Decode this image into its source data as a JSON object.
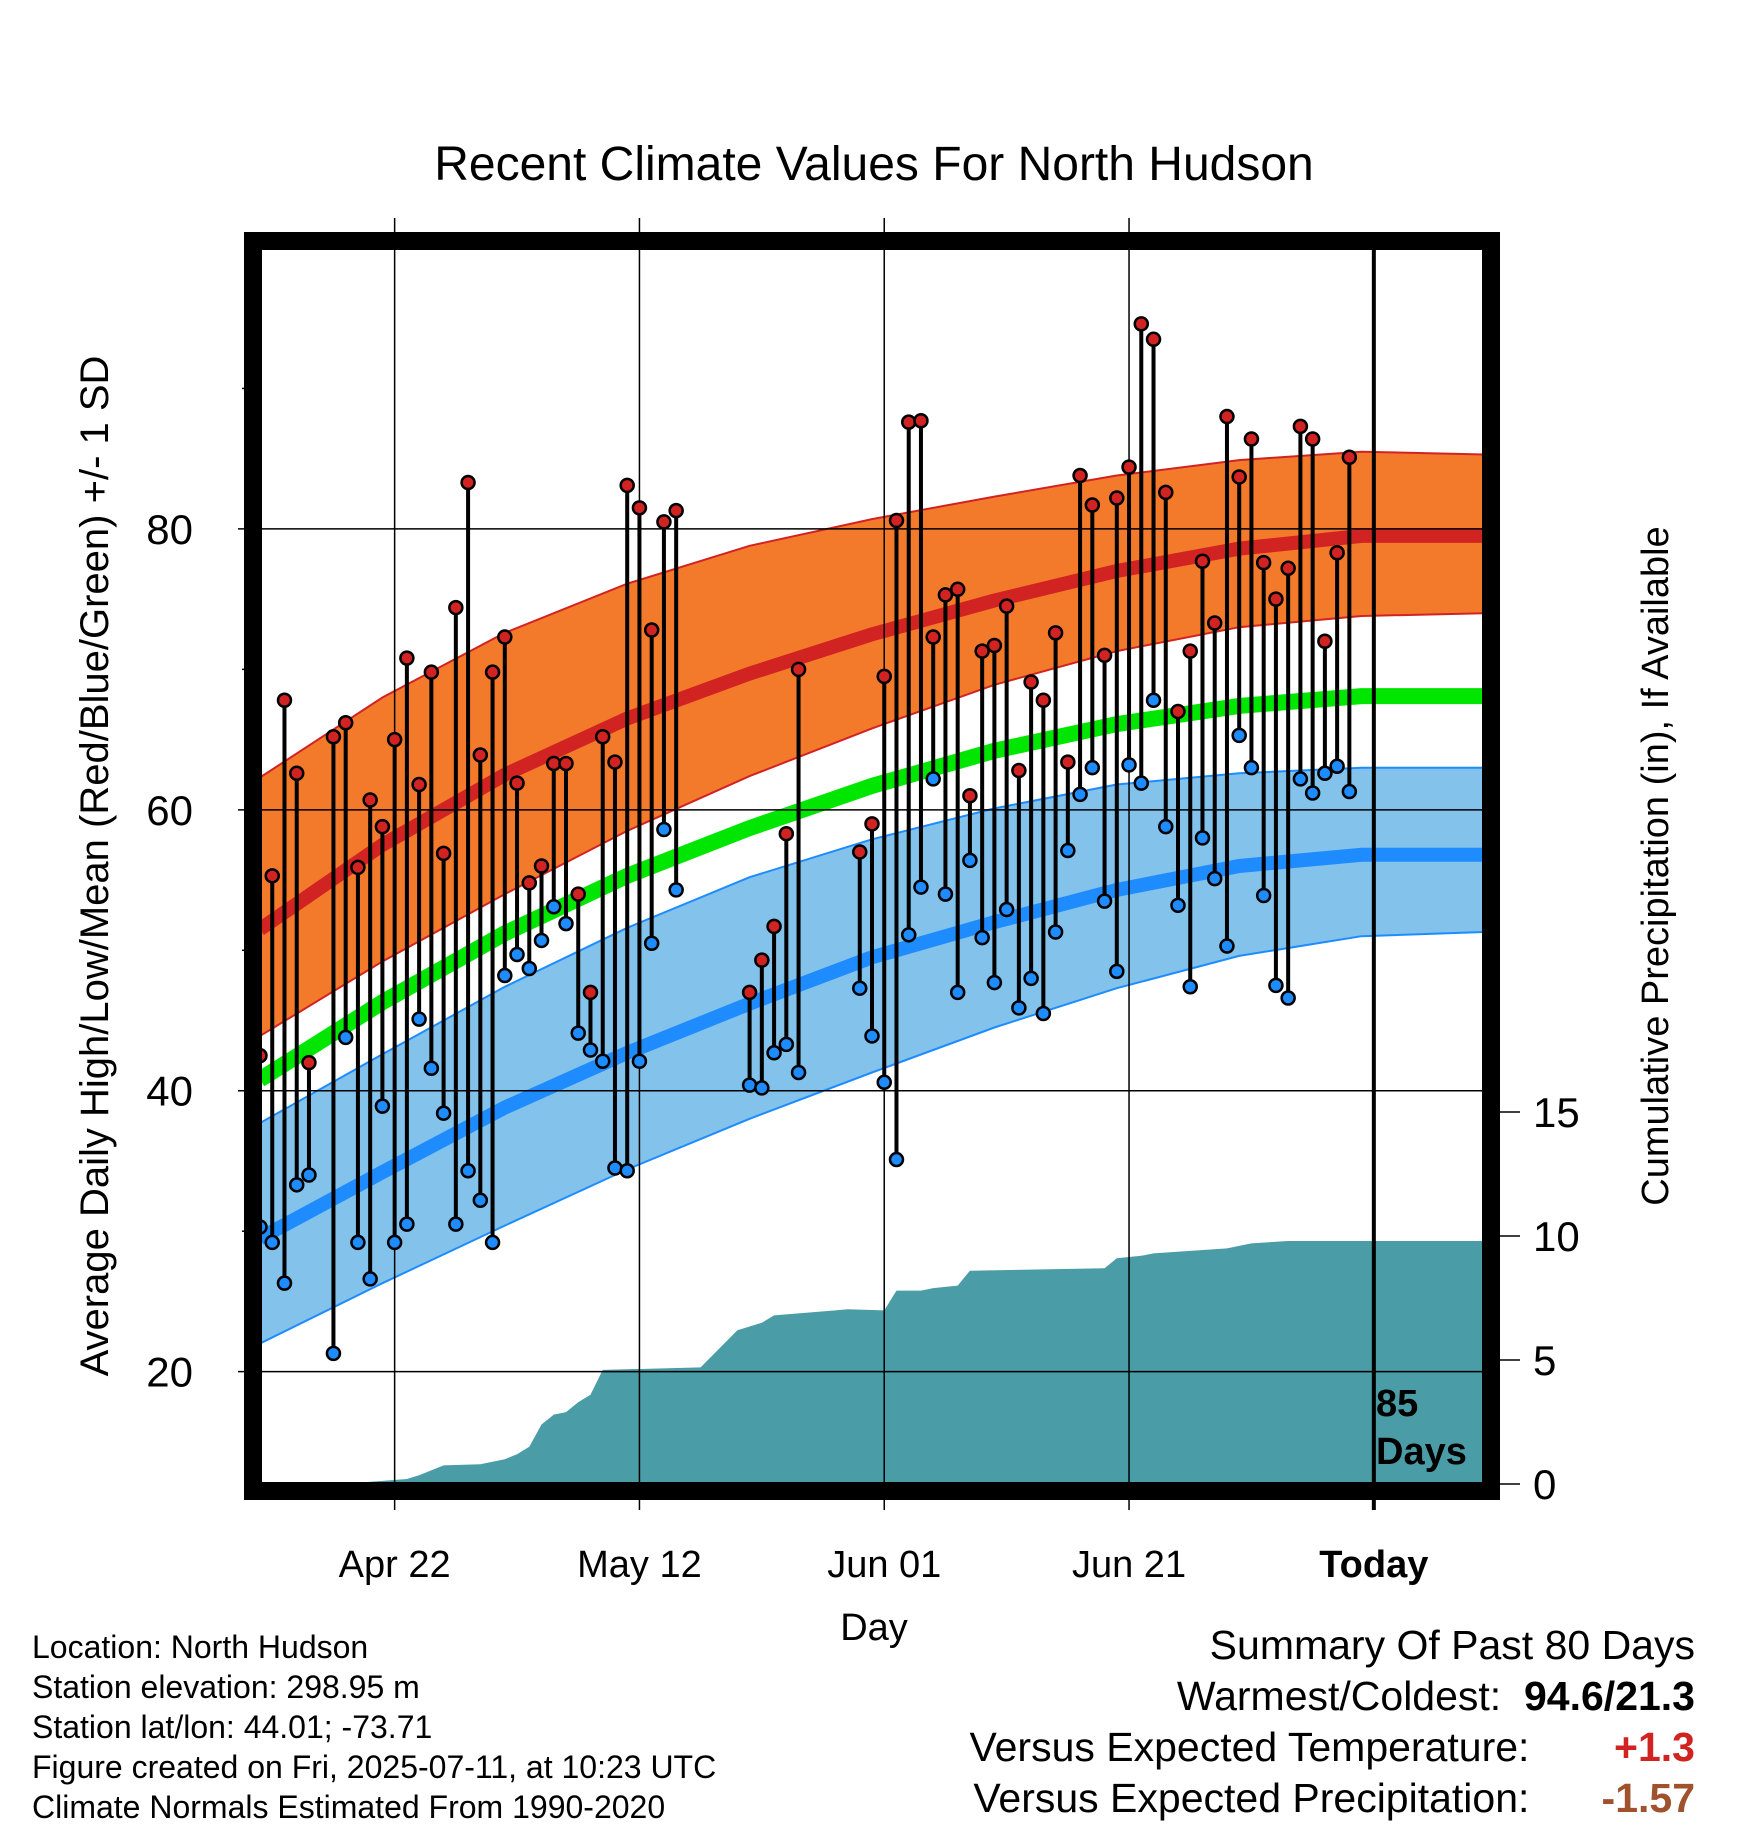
{
  "chart_data": {
    "type": "line",
    "title": "Recent Climate Values For North Hudson",
    "xlabel": "Day",
    "ylabel_left": "Average Daily High/Low/Mean (Red/Blue/Green) +/- 1 SD",
    "ylabel_right": "Cumulative Precipitation (in), If Available",
    "x_tick_labels": [
      "Apr 22",
      "May 12",
      "Jun 01",
      "Jun 21",
      "Today"
    ],
    "x_tick_days": [
      11,
      31,
      51,
      71,
      91
    ],
    "x_range_days": [
      0,
      100
    ],
    "y_left_ticks": [
      "20",
      "40",
      "60",
      "80"
    ],
    "y_left_tick_values": [
      20,
      40,
      60,
      80
    ],
    "y_left_range": [
      12,
      100
    ],
    "y_right_ticks": [
      "0",
      "5",
      "10",
      "15"
    ],
    "y_right_tick_values": [
      0,
      5,
      10,
      15
    ],
    "y_right_range": [
      0,
      50
    ],
    "grid": true,
    "today_annotation": "85\nDays",
    "normals": {
      "day": [
        0,
        10,
        20,
        30,
        40,
        50,
        60,
        70,
        80,
        90,
        100
      ],
      "high_mean": [
        51.5,
        57.5,
        62.5,
        66.5,
        69.7,
        72.5,
        74.9,
        77.0,
        78.6,
        79.5,
        79.5
      ],
      "high_sd_upper": [
        62.3,
        68.0,
        72.6,
        76.1,
        78.8,
        80.7,
        82.3,
        83.8,
        84.9,
        85.5,
        85.3
      ],
      "high_sd_lower": [
        43.9,
        49.2,
        54.0,
        58.5,
        62.4,
        65.8,
        68.9,
        71.3,
        73.0,
        73.8,
        74.0
      ],
      "mean_mean": [
        40.8,
        46.3,
        51.2,
        55.3,
        58.7,
        61.7,
        64.2,
        66.1,
        67.4,
        68.1,
        68.1
      ],
      "low_mean": [
        29.5,
        34.2,
        38.8,
        42.7,
        46.2,
        49.5,
        52.0,
        54.3,
        56.0,
        56.8,
        56.8
      ],
      "low_sd_upper": [
        37.7,
        42.6,
        47.4,
        51.6,
        55.2,
        57.9,
        60.1,
        61.8,
        62.6,
        63.0,
        63.0
      ],
      "low_sd_lower": [
        22.0,
        26.3,
        30.4,
        34.4,
        38.0,
        41.3,
        44.5,
        47.3,
        49.6,
        51.0,
        51.3
      ]
    },
    "observations": [
      {
        "day": 0,
        "high": 42.5,
        "low": 30.3
      },
      {
        "day": 1,
        "high": 55.3,
        "low": 29.2
      },
      {
        "day": 2,
        "high": 67.8,
        "low": 26.3
      },
      {
        "day": 3,
        "high": 62.6,
        "low": 33.3
      },
      {
        "day": 4,
        "high": 42.0,
        "low": 34.0
      },
      {
        "day": 6,
        "high": 65.2,
        "low": 21.3
      },
      {
        "day": 7,
        "high": 66.2,
        "low": 43.8
      },
      {
        "day": 8,
        "high": 55.9,
        "low": 29.2
      },
      {
        "day": 9,
        "high": 60.7,
        "low": 26.6
      },
      {
        "day": 10,
        "high": 58.8,
        "low": 38.9
      },
      {
        "day": 11,
        "high": 65.0,
        "low": 29.2
      },
      {
        "day": 12,
        "high": 70.8,
        "low": 30.5
      },
      {
        "day": 13,
        "high": 61.8,
        "low": 45.1
      },
      {
        "day": 14,
        "high": 69.8,
        "low": 41.6
      },
      {
        "day": 15,
        "high": 56.9,
        "low": 38.4
      },
      {
        "day": 16,
        "high": 74.4,
        "low": 30.5
      },
      {
        "day": 17,
        "high": 83.3,
        "low": 34.3
      },
      {
        "day": 18,
        "high": 63.9,
        "low": 32.2
      },
      {
        "day": 19,
        "high": 69.8,
        "low": 29.2
      },
      {
        "day": 20,
        "high": 72.3,
        "low": 48.2
      },
      {
        "day": 21,
        "high": 61.9,
        "low": 49.7
      },
      {
        "day": 22,
        "high": 54.8,
        "low": 48.7
      },
      {
        "day": 23,
        "high": 56.0,
        "low": 50.7
      },
      {
        "day": 24,
        "high": 63.3,
        "low": 53.1
      },
      {
        "day": 25,
        "high": 63.3,
        "low": 51.9
      },
      {
        "day": 26,
        "high": 54.0,
        "low": 44.1
      },
      {
        "day": 27,
        "high": 47.0,
        "low": 42.9
      },
      {
        "day": 28,
        "high": 65.2,
        "low": 42.1
      },
      {
        "day": 29,
        "high": 63.4,
        "low": 34.5
      },
      {
        "day": 30,
        "high": 83.1,
        "low": 34.3
      },
      {
        "day": 31,
        "high": 81.5,
        "low": 42.1
      },
      {
        "day": 32,
        "high": 72.8,
        "low": 50.5
      },
      {
        "day": 33,
        "high": 80.5,
        "low": 58.6
      },
      {
        "day": 34,
        "high": 81.3,
        "low": 54.3
      },
      {
        "day": 40,
        "high": 47.0,
        "low": 40.4
      },
      {
        "day": 41,
        "high": 49.3,
        "low": 40.2
      },
      {
        "day": 42,
        "high": 51.7,
        "low": 42.7
      },
      {
        "day": 43,
        "high": 58.3,
        "low": 43.3
      },
      {
        "day": 44,
        "high": 70.0,
        "low": 41.3
      },
      {
        "day": 49,
        "high": 57.0,
        "low": 47.3
      },
      {
        "day": 50,
        "high": 59.0,
        "low": 43.9
      },
      {
        "day": 51,
        "high": 69.5,
        "low": 40.6
      },
      {
        "day": 52,
        "high": 80.6,
        "low": 35.1
      },
      {
        "day": 53,
        "high": 87.6,
        "low": 51.1
      },
      {
        "day": 54,
        "high": 87.7,
        "low": 54.5
      },
      {
        "day": 55,
        "high": 72.3,
        "low": 62.2
      },
      {
        "day": 56,
        "high": 75.3,
        "low": 54.0
      },
      {
        "day": 57,
        "high": 75.7,
        "low": 47.0
      },
      {
        "day": 58,
        "high": 61.0,
        "low": 56.4
      },
      {
        "day": 59,
        "high": 71.3,
        "low": 50.9
      },
      {
        "day": 60,
        "high": 71.7,
        "low": 47.7
      },
      {
        "day": 61,
        "high": 74.5,
        "low": 52.9
      },
      {
        "day": 62,
        "high": 62.8,
        "low": 45.9
      },
      {
        "day": 63,
        "high": 69.1,
        "low": 48.0
      },
      {
        "day": 64,
        "high": 67.8,
        "low": 45.5
      },
      {
        "day": 65,
        "high": 72.6,
        "low": 51.3
      },
      {
        "day": 66,
        "high": 63.4,
        "low": 57.1
      },
      {
        "day": 67,
        "high": 83.8,
        "low": 61.1
      },
      {
        "day": 68,
        "high": 81.7,
        "low": 63.0
      },
      {
        "day": 69,
        "high": 71.0,
        "low": 53.5
      },
      {
        "day": 70,
        "high": 82.2,
        "low": 48.5
      },
      {
        "day": 71,
        "high": 84.4,
        "low": 63.2
      },
      {
        "day": 72,
        "high": 94.6,
        "low": 61.9
      },
      {
        "day": 73,
        "high": 93.5,
        "low": 67.8
      },
      {
        "day": 74,
        "high": 82.6,
        "low": 58.8
      },
      {
        "day": 75,
        "high": 67.0,
        "low": 53.2
      },
      {
        "day": 76,
        "high": 71.3,
        "low": 47.4
      },
      {
        "day": 77,
        "high": 77.7,
        "low": 58.0
      },
      {
        "day": 78,
        "high": 73.3,
        "low": 55.1
      },
      {
        "day": 79,
        "high": 88.0,
        "low": 50.3
      },
      {
        "day": 80,
        "high": 83.7,
        "low": 65.3
      },
      {
        "day": 81,
        "high": 86.4,
        "low": 63.0
      },
      {
        "day": 82,
        "high": 77.6,
        "low": 53.9
      },
      {
        "day": 83,
        "high": 75.0,
        "low": 47.5
      },
      {
        "day": 84,
        "high": 77.2,
        "low": 46.6
      },
      {
        "day": 85,
        "high": 87.3,
        "low": 62.2
      },
      {
        "day": 86,
        "high": 86.4,
        "low": 61.2
      },
      {
        "day": 87,
        "high": 72.0,
        "low": 62.6
      },
      {
        "day": 88,
        "high": 78.3,
        "low": 63.1
      },
      {
        "day": 89,
        "high": 85.1,
        "low": 61.3
      }
    ],
    "cumulative_precip": {
      "day": [
        8,
        12,
        13,
        15,
        18,
        20,
        21,
        22,
        23,
        24,
        25,
        26,
        27,
        28,
        36,
        39,
        41,
        42,
        47,
        48,
        51,
        52,
        54,
        55,
        57,
        58,
        69,
        70,
        72,
        73,
        79,
        80,
        81,
        84,
        92,
        100
      ],
      "inches": [
        0.05,
        0.2,
        0.35,
        0.75,
        0.8,
        1.0,
        1.2,
        1.5,
        2.4,
        2.8,
        2.9,
        3.3,
        3.6,
        4.6,
        4.7,
        6.2,
        6.5,
        6.8,
        7.0,
        7.05,
        7.0,
        7.8,
        7.8,
        7.9,
        8.0,
        8.6,
        8.7,
        9.1,
        9.2,
        9.3,
        9.5,
        9.6,
        9.7,
        9.8,
        9.8,
        9.8
      ],
      "cutoff_day": 91
    },
    "colors": {
      "high_band": "#f47a2b",
      "high_line": "#d22323",
      "mean_line": "#00e600",
      "low_band": "#82c2eb",
      "low_line": "#1e8cff",
      "precip_fill": "#4a9ca6",
      "high_marker": "#d22323",
      "low_marker": "#1e8cff"
    }
  },
  "info": {
    "location": "Location: North Hudson",
    "elevation": "Station elevation: 298.95 m",
    "latlon": "Station lat/lon: 44.01; -73.71",
    "created": "Figure created on Fri, 2025-07-11, at 10:23 UTC",
    "normals": "Climate Normals Estimated From 1990-2020"
  },
  "summary": {
    "title": "Summary Of Past 80 Days",
    "warmest_label": "Warmest/Coldest:",
    "warmest_value": "94.6/21.3",
    "temp_label": "Versus Expected Temperature:",
    "temp_value": "+1.3",
    "temp_color": "#d22323",
    "precip_label": "Versus Expected Precipitation:",
    "precip_value": "-1.57",
    "precip_color": "#a0522d"
  }
}
